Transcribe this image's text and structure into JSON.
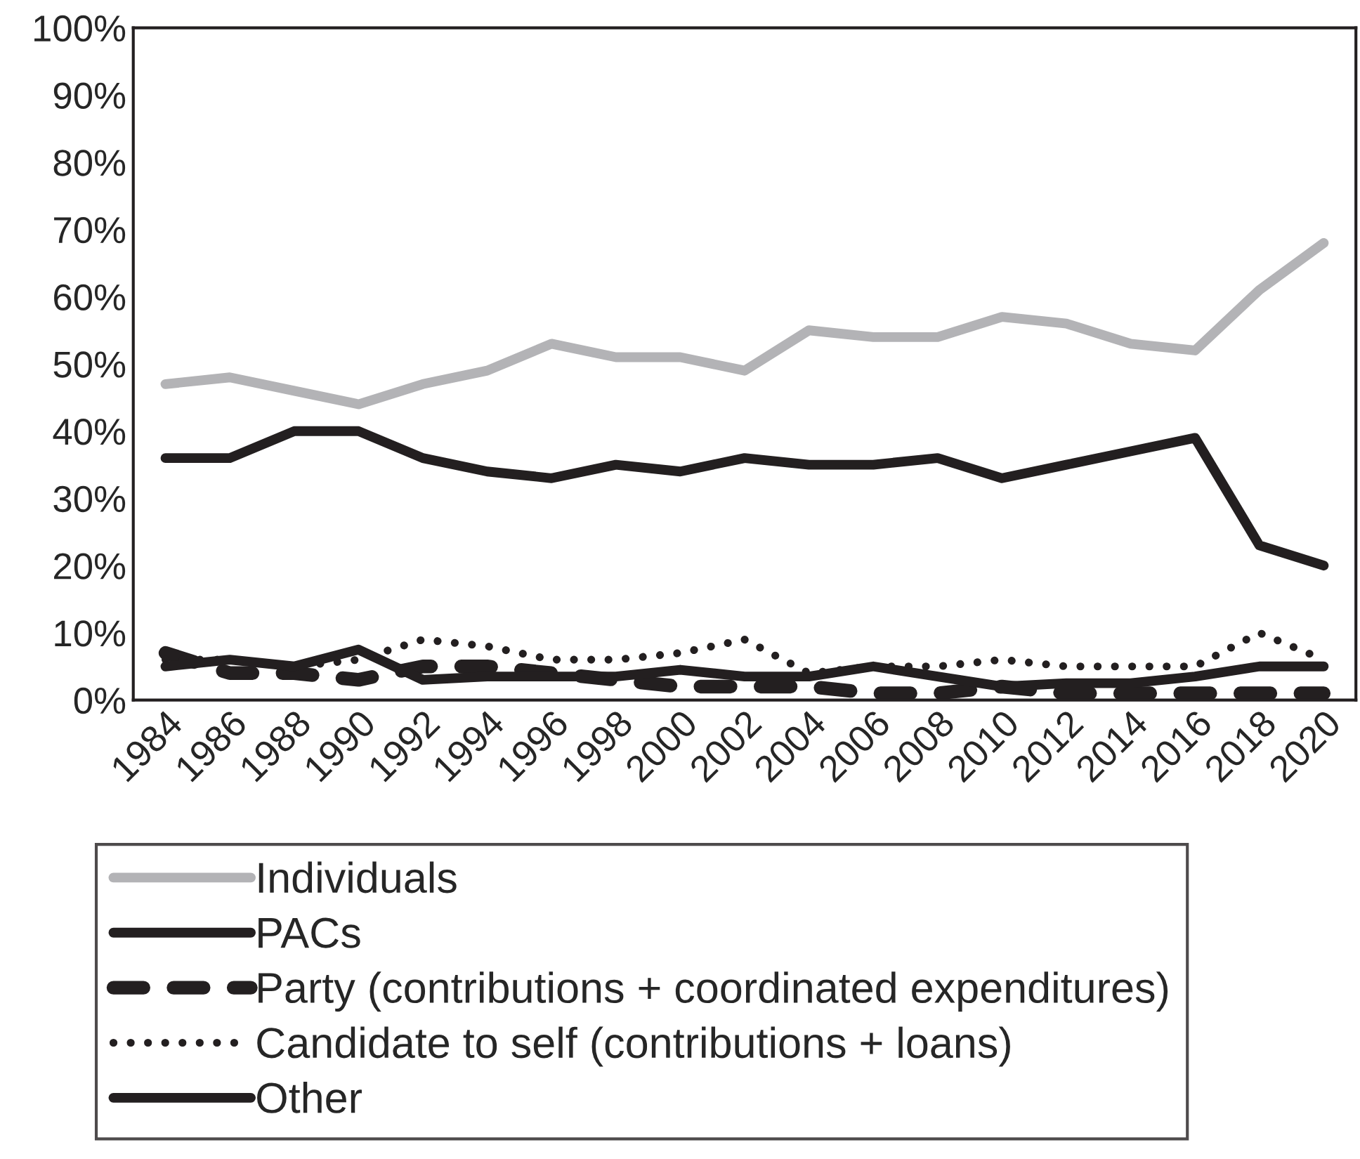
{
  "chart_data": {
    "type": "line",
    "categories": [
      "1984",
      "1986",
      "1988",
      "1990",
      "1992",
      "1994",
      "1996",
      "1998",
      "2000",
      "2002",
      "2004",
      "2006",
      "2008",
      "2010",
      "2012",
      "2014",
      "2016",
      "2018",
      "2020"
    ],
    "series": [
      {
        "name": "Individuals",
        "color": "#b3b3b6",
        "line_style": "solid",
        "values": [
          47,
          48,
          46,
          44,
          47,
          49,
          53,
          51,
          51,
          49,
          55,
          54,
          54,
          57,
          56,
          53,
          52,
          61,
          68
        ]
      },
      {
        "name": "PACs",
        "color": "#231f20",
        "line_style": "solid",
        "values": [
          36,
          36,
          40,
          40,
          36,
          34,
          33,
          35,
          34,
          36,
          35,
          35,
          36,
          33,
          35,
          37,
          39,
          23,
          20
        ]
      },
      {
        "name": "Party (contributions + coordinated expenditures)",
        "color": "#231f20",
        "line_style": "dashed",
        "values": [
          7,
          4,
          4,
          3,
          5,
          5,
          4,
          3,
          2,
          2,
          2,
          1,
          1,
          2,
          1,
          1,
          1,
          1,
          1
        ]
      },
      {
        "name": "Candidate to self (contributions + loans)",
        "color": "#231f20",
        "line_style": "dotted",
        "values": [
          6,
          6,
          5,
          6,
          9,
          8,
          6,
          6,
          7,
          9,
          4,
          5,
          5,
          6,
          5,
          5,
          5,
          10,
          6
        ]
      },
      {
        "name": "Other",
        "color": "#231f20",
        "line_style": "solid",
        "values": [
          5,
          6,
          5,
          7.5,
          3,
          3.5,
          3.5,
          3.5,
          4.5,
          3.5,
          3.5,
          5,
          3.5,
          2,
          2.5,
          2.5,
          3.5,
          5,
          5
        ]
      }
    ],
    "ylim": [
      0,
      100
    ],
    "yticks": [
      {
        "value": 0,
        "label": "0%"
      },
      {
        "value": 10,
        "label": "10%"
      },
      {
        "value": 20,
        "label": "20%"
      },
      {
        "value": 30,
        "label": "30%"
      },
      {
        "value": 40,
        "label": "40%"
      },
      {
        "value": 50,
        "label": "50%"
      },
      {
        "value": 60,
        "label": "60%"
      },
      {
        "value": 70,
        "label": "70%"
      },
      {
        "value": 80,
        "label": "80%"
      },
      {
        "value": 90,
        "label": "90%"
      },
      {
        "value": 100,
        "label": "100%"
      }
    ],
    "grid": false,
    "legend": "bottom",
    "marker": "none"
  }
}
